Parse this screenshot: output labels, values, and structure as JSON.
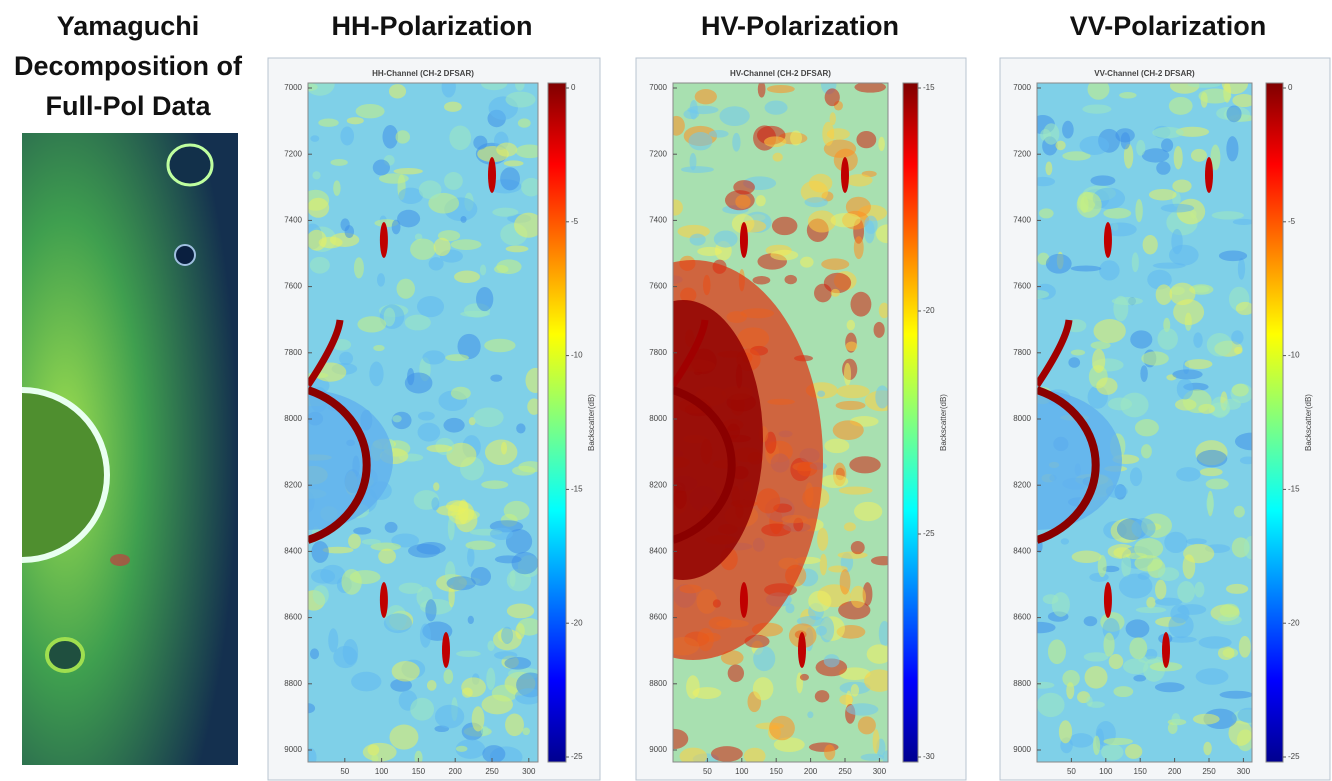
{
  "left_title": [
    "Yamaguchi",
    "Decomposition of",
    "Full-Pol Data"
  ],
  "panels": [
    {
      "heading": "HH-Polarization",
      "plot_title": "HH-Channel (CH-2 DFSAR)",
      "yticks": [
        7000,
        7200,
        7400,
        7600,
        7800,
        8000,
        8200,
        8400,
        8600,
        8800,
        9000
      ],
      "xticks": [
        50,
        100,
        150,
        200,
        250,
        300
      ],
      "colorbar_ticks": [
        0,
        -5,
        -10,
        -15,
        -20,
        -25
      ],
      "colorbar_label": "Backscatter(dB)"
    },
    {
      "heading": "HV-Polarization",
      "plot_title": "HV-Channel (CH-2 DFSAR)",
      "yticks": [
        7000,
        7200,
        7400,
        7600,
        7800,
        8000,
        8200,
        8400,
        8600,
        8800,
        9000
      ],
      "xticks": [
        50,
        100,
        150,
        200,
        250,
        300
      ],
      "colorbar_ticks": [
        -15,
        -20,
        -25,
        -30
      ],
      "colorbar_label": "Backscatter(dB)"
    },
    {
      "heading": "VV-Polarization",
      "plot_title": "VV-Channel (CH-2 DFSAR)",
      "yticks": [
        7000,
        7200,
        7400,
        7600,
        7800,
        8000,
        8200,
        8400,
        8600,
        8800,
        9000
      ],
      "xticks": [
        50,
        100,
        150,
        200,
        250,
        300
      ],
      "colorbar_ticks": [
        0,
        -5,
        -10,
        -15,
        -20,
        -25
      ],
      "colorbar_label": "Backscatter(dB)"
    }
  ]
}
